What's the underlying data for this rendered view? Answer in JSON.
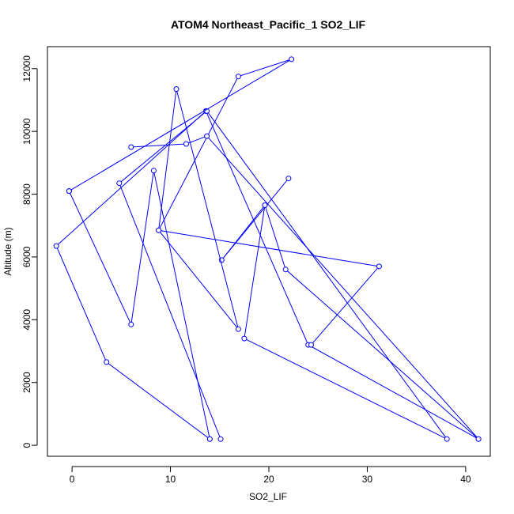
{
  "chart_data": {
    "type": "line",
    "title": "ATOM4 Northeast_Pacific_1 SO2_LIF",
    "xlabel": "SO2_LIF",
    "ylabel": "Altitude (m)",
    "xlim": [
      -2.5,
      42.5
    ],
    "ylim": [
      -350,
      12700
    ],
    "x_ticks": [
      0,
      10,
      20,
      30,
      40
    ],
    "y_ticks": [
      0,
      2000,
      4000,
      6000,
      8000,
      10000,
      12000
    ],
    "grid": false,
    "legend": "none",
    "line_color": "#0000ff",
    "marker": "open-circle",
    "series": [
      {
        "x": [
          14.0,
          3.5,
          -1.6,
          13.6,
          24.0,
          41.3,
          21.7,
          19.6,
          15.2,
          22.0
        ],
        "y": [
          200,
          2650,
          6350,
          10650,
          3200,
          200,
          5600,
          7650,
          5900,
          8500
        ]
      },
      {
        "x": [
          15.1,
          4.8,
          13.7,
          38.1,
          17.5,
          19.6
        ],
        "y": [
          200,
          8350,
          10650,
          200,
          3400,
          7650
        ]
      },
      {
        "x": [
          -0.3,
          22.3,
          16.9,
          8.8,
          10.6,
          16.9,
          8.8,
          31.2,
          24.3
        ],
        "y": [
          8100,
          12300,
          11750,
          6850,
          11350,
          3700,
          6850,
          5700,
          3200
        ]
      },
      {
        "x": [
          -0.3,
          6.0,
          8.3,
          14.0
        ],
        "y": [
          8100,
          3850,
          8750,
          200
        ]
      },
      {
        "x": [
          6.0,
          11.6,
          13.7,
          41.3
        ],
        "y": [
          9500,
          9600,
          9850,
          200
        ]
      }
    ]
  }
}
